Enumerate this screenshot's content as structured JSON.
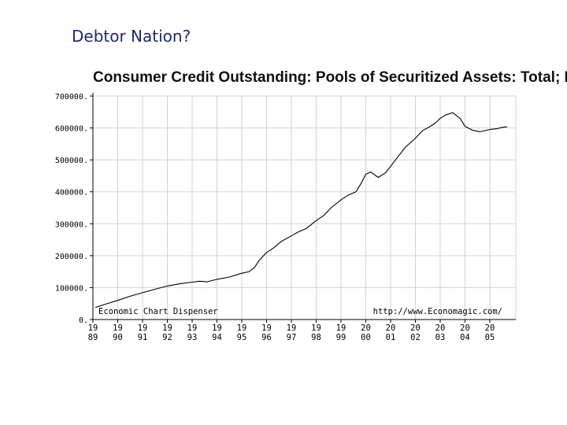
{
  "slide": {
    "title": "Debtor Nation?"
  },
  "chart_data": {
    "type": "line",
    "title": "Consumer Credit Outstanding: Pools of Securitized Assets: Total; Millio",
    "ylim": [
      0,
      700000
    ],
    "y_ticks": [
      "700000.",
      "600000.",
      "500000.",
      "400000.",
      "300000.",
      "200000.",
      "100000.",
      "0."
    ],
    "y_tick_values": [
      700000,
      600000,
      500000,
      400000,
      300000,
      200000,
      100000,
      0
    ],
    "x_ticks": [
      [
        "19",
        "89"
      ],
      [
        "19",
        "90"
      ],
      [
        "19",
        "91"
      ],
      [
        "19",
        "92"
      ],
      [
        "19",
        "93"
      ],
      [
        "19",
        "94"
      ],
      [
        "19",
        "95"
      ],
      [
        "19",
        "96"
      ],
      [
        "19",
        "97"
      ],
      [
        "19",
        "98"
      ],
      [
        "19",
        "99"
      ],
      [
        "20",
        "00"
      ],
      [
        "20",
        "01"
      ],
      [
        "20",
        "02"
      ],
      [
        "20",
        "03"
      ],
      [
        "20",
        "04"
      ],
      [
        "20",
        "05"
      ]
    ],
    "x_tick_years": [
      1989,
      1990,
      1991,
      1992,
      1993,
      1994,
      1995,
      1996,
      1997,
      1998,
      1999,
      2000,
      2001,
      2002,
      2003,
      2004,
      2005
    ],
    "xlim": [
      1989,
      2005.75
    ],
    "grid": true,
    "annotations": {
      "left": "Economic Chart Dispenser",
      "right": "http://www.Economagic.com/"
    },
    "series": [
      {
        "x": [
          1989.1,
          1989.5,
          1990.0,
          1990.5,
          1991.0,
          1991.5,
          1992.0,
          1992.5,
          1993.0,
          1993.3,
          1993.6,
          1994.0,
          1994.5,
          1995.0,
          1995.3,
          1995.5,
          1995.7,
          1996.0,
          1996.3,
          1996.6,
          1997.0,
          1997.3,
          1997.6,
          1998.0,
          1998.3,
          1998.6,
          1999.0,
          1999.3,
          1999.6,
          1999.8,
          2000.0,
          2000.2,
          2000.5,
          2000.8,
          2001.0,
          2001.3,
          2001.6,
          2002.0,
          2002.3,
          2002.6,
          2002.8,
          2003.0,
          2003.2,
          2003.5,
          2003.8,
          2004.0,
          2004.3,
          2004.6,
          2005.0,
          2005.3,
          2005.5,
          2005.7
        ],
        "y": [
          38000,
          48000,
          60000,
          73000,
          84000,
          95000,
          105000,
          112000,
          117000,
          120000,
          118000,
          126000,
          133000,
          145000,
          150000,
          162000,
          185000,
          210000,
          225000,
          245000,
          262000,
          275000,
          285000,
          310000,
          325000,
          350000,
          375000,
          390000,
          400000,
          425000,
          455000,
          462000,
          445000,
          460000,
          480000,
          510000,
          540000,
          568000,
          592000,
          605000,
          615000,
          630000,
          640000,
          648000,
          630000,
          605000,
          593000,
          588000,
          595000,
          598000,
          602000,
          604000
        ]
      }
    ]
  }
}
